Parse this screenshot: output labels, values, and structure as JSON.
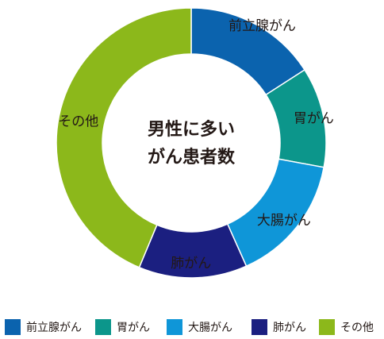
{
  "chart_data": {
    "type": "pie",
    "donut": true,
    "title": "男性に多いがん患者数",
    "title_lines": [
      "男性に多い",
      "がん患者数"
    ],
    "categories": [
      "前立腺がん",
      "胃がん",
      "大腸がん",
      "肺がん",
      "その他"
    ],
    "values": [
      15.9,
      12.0,
      15.4,
      13.0,
      43.7
    ],
    "colors": [
      "#0b63ae",
      "#0c968b",
      "#0f96d8",
      "#1b1f80",
      "#8cb81b"
    ],
    "legend": "bottom"
  }
}
